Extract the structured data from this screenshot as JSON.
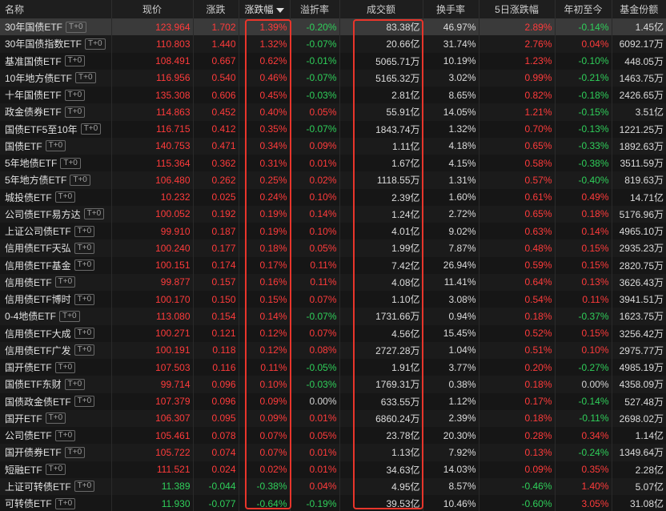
{
  "colors": {
    "up": "#ff3b3b",
    "down": "#2fcf5a",
    "highlight": "#e8352b"
  },
  "headers": [
    "名称",
    "现价",
    "涨跌",
    "涨跌幅",
    "溢折率",
    "成交额",
    "换手率",
    "5日涨跌幅",
    "年初至今",
    "基金份额"
  ],
  "sort_indicator": "sort-desc-icon",
  "rows": [
    {
      "name": "30年国债ETF",
      "tag": "T+0",
      "price": "123.964",
      "chg": "1.702",
      "pct": "1.39%",
      "prem": "-0.20%",
      "vol": "83.38亿",
      "turn": "46.97%",
      "d5": "2.89%",
      "ytd": "-0.14%",
      "shares": "1.45亿"
    },
    {
      "name": "30年国债指数ETF",
      "tag": "T+0",
      "price": "110.803",
      "chg": "1.440",
      "pct": "1.32%",
      "prem": "-0.07%",
      "vol": "20.66亿",
      "turn": "31.74%",
      "d5": "2.76%",
      "ytd": "0.04%",
      "shares": "6092.17万"
    },
    {
      "name": "基准国债ETF",
      "tag": "T+0",
      "price": "108.491",
      "chg": "0.667",
      "pct": "0.62%",
      "prem": "-0.01%",
      "vol": "5065.71万",
      "turn": "10.19%",
      "d5": "1.23%",
      "ytd": "-0.10%",
      "shares": "448.05万"
    },
    {
      "name": "10年地方债ETF",
      "tag": "T+0",
      "price": "116.956",
      "chg": "0.540",
      "pct": "0.46%",
      "prem": "-0.07%",
      "vol": "5165.32万",
      "turn": "3.02%",
      "d5": "0.99%",
      "ytd": "-0.21%",
      "shares": "1463.75万"
    },
    {
      "name": "十年国债ETF",
      "tag": "T+0",
      "price": "135.308",
      "chg": "0.606",
      "pct": "0.45%",
      "prem": "-0.03%",
      "vol": "2.81亿",
      "turn": "8.65%",
      "d5": "0.82%",
      "ytd": "-0.18%",
      "shares": "2426.65万"
    },
    {
      "name": "政金债券ETF",
      "tag": "T+0",
      "price": "114.863",
      "chg": "0.452",
      "pct": "0.40%",
      "prem": "0.05%",
      "vol": "55.91亿",
      "turn": "14.05%",
      "d5": "1.21%",
      "ytd": "-0.15%",
      "shares": "3.51亿"
    },
    {
      "name": "国债ETF5至10年",
      "tag": "T+0",
      "price": "116.715",
      "chg": "0.412",
      "pct": "0.35%",
      "prem": "-0.07%",
      "vol": "1843.74万",
      "turn": "1.32%",
      "d5": "0.70%",
      "ytd": "-0.13%",
      "shares": "1221.25万"
    },
    {
      "name": "国债ETF",
      "tag": "T+0",
      "price": "140.753",
      "chg": "0.471",
      "pct": "0.34%",
      "prem": "0.09%",
      "vol": "1.11亿",
      "turn": "4.18%",
      "d5": "0.65%",
      "ytd": "-0.33%",
      "shares": "1892.63万"
    },
    {
      "name": "5年地债ETF",
      "tag": "T+0",
      "price": "115.364",
      "chg": "0.362",
      "pct": "0.31%",
      "prem": "0.01%",
      "vol": "1.67亿",
      "turn": "4.15%",
      "d5": "0.58%",
      "ytd": "-0.38%",
      "shares": "3511.59万"
    },
    {
      "name": "5年地方债ETF",
      "tag": "T+0",
      "price": "106.480",
      "chg": "0.262",
      "pct": "0.25%",
      "prem": "0.02%",
      "vol": "1118.55万",
      "turn": "1.31%",
      "d5": "0.57%",
      "ytd": "-0.40%",
      "shares": "819.63万"
    },
    {
      "name": "城投债ETF",
      "tag": "T+0",
      "price": "10.232",
      "chg": "0.025",
      "pct": "0.24%",
      "prem": "0.10%",
      "vol": "2.39亿",
      "turn": "1.60%",
      "d5": "0.61%",
      "ytd": "0.49%",
      "shares": "14.71亿"
    },
    {
      "name": "公司债ETF易方达",
      "tag": "T+0",
      "price": "100.052",
      "chg": "0.192",
      "pct": "0.19%",
      "prem": "0.14%",
      "vol": "1.24亿",
      "turn": "2.72%",
      "d5": "0.65%",
      "ytd": "0.18%",
      "shares": "5176.96万"
    },
    {
      "name": "上证公司债ETF",
      "tag": "T+0",
      "price": "99.910",
      "chg": "0.187",
      "pct": "0.19%",
      "prem": "0.10%",
      "vol": "4.01亿",
      "turn": "9.02%",
      "d5": "0.63%",
      "ytd": "0.14%",
      "shares": "4965.10万"
    },
    {
      "name": "信用债ETF天弘",
      "tag": "T+0",
      "price": "100.240",
      "chg": "0.177",
      "pct": "0.18%",
      "prem": "0.05%",
      "vol": "1.99亿",
      "turn": "7.87%",
      "d5": "0.48%",
      "ytd": "0.15%",
      "shares": "2935.23万"
    },
    {
      "name": "信用债ETF基金",
      "tag": "T+0",
      "price": "100.151",
      "chg": "0.174",
      "pct": "0.17%",
      "prem": "0.11%",
      "vol": "7.42亿",
      "turn": "26.94%",
      "d5": "0.59%",
      "ytd": "0.15%",
      "shares": "2820.75万"
    },
    {
      "name": "信用债ETF",
      "tag": "T+0",
      "price": "99.877",
      "chg": "0.157",
      "pct": "0.16%",
      "prem": "0.11%",
      "vol": "4.08亿",
      "turn": "11.41%",
      "d5": "0.64%",
      "ytd": "0.13%",
      "shares": "3626.43万"
    },
    {
      "name": "信用债ETF博时",
      "tag": "T+0",
      "price": "100.170",
      "chg": "0.150",
      "pct": "0.15%",
      "prem": "0.07%",
      "vol": "1.10亿",
      "turn": "3.08%",
      "d5": "0.54%",
      "ytd": "0.11%",
      "shares": "3941.51万"
    },
    {
      "name": "0-4地债ETF",
      "tag": "T+0",
      "price": "113.080",
      "chg": "0.154",
      "pct": "0.14%",
      "prem": "-0.07%",
      "vol": "1731.66万",
      "turn": "0.94%",
      "d5": "0.18%",
      "ytd": "-0.37%",
      "shares": "1623.75万"
    },
    {
      "name": "信用债ETF大成",
      "tag": "T+0",
      "price": "100.271",
      "chg": "0.121",
      "pct": "0.12%",
      "prem": "0.07%",
      "vol": "4.56亿",
      "turn": "15.45%",
      "d5": "0.52%",
      "ytd": "0.15%",
      "shares": "3256.42万"
    },
    {
      "name": "信用债ETF广发",
      "tag": "T+0",
      "price": "100.191",
      "chg": "0.118",
      "pct": "0.12%",
      "prem": "0.08%",
      "vol": "2727.28万",
      "turn": "1.04%",
      "d5": "0.51%",
      "ytd": "0.10%",
      "shares": "2975.77万"
    },
    {
      "name": "国开债ETF",
      "tag": "T+0",
      "price": "107.503",
      "chg": "0.116",
      "pct": "0.11%",
      "prem": "-0.05%",
      "vol": "1.91亿",
      "turn": "3.77%",
      "d5": "0.20%",
      "ytd": "-0.27%",
      "shares": "4985.19万"
    },
    {
      "name": "国债ETF东财",
      "tag": "T+0",
      "price": "99.714",
      "chg": "0.096",
      "pct": "0.10%",
      "prem": "-0.03%",
      "vol": "1769.31万",
      "turn": "0.38%",
      "d5": "0.18%",
      "ytd": "0.00%",
      "shares": "4358.09万"
    },
    {
      "name": "国债政金债ETF",
      "tag": "T+0",
      "price": "107.379",
      "chg": "0.096",
      "pct": "0.09%",
      "prem": "0.00%",
      "vol": "633.55万",
      "turn": "1.12%",
      "d5": "0.17%",
      "ytd": "-0.14%",
      "shares": "527.48万"
    },
    {
      "name": "国开ETF",
      "tag": "T+0",
      "price": "106.307",
      "chg": "0.095",
      "pct": "0.09%",
      "prem": "0.01%",
      "vol": "6860.24万",
      "turn": "2.39%",
      "d5": "0.18%",
      "ytd": "-0.11%",
      "shares": "2698.02万"
    },
    {
      "name": "公司债ETF",
      "tag": "T+0",
      "price": "105.461",
      "chg": "0.078",
      "pct": "0.07%",
      "prem": "0.05%",
      "vol": "23.78亿",
      "turn": "20.30%",
      "d5": "0.28%",
      "ytd": "0.34%",
      "shares": "1.14亿"
    },
    {
      "name": "国开债券ETF",
      "tag": "T+0",
      "price": "105.722",
      "chg": "0.074",
      "pct": "0.07%",
      "prem": "0.01%",
      "vol": "1.13亿",
      "turn": "7.92%",
      "d5": "0.13%",
      "ytd": "-0.24%",
      "shares": "1349.64万"
    },
    {
      "name": "短融ETF",
      "tag": "T+0",
      "price": "111.521",
      "chg": "0.024",
      "pct": "0.02%",
      "prem": "0.01%",
      "vol": "34.63亿",
      "turn": "14.03%",
      "d5": "0.09%",
      "ytd": "0.35%",
      "shares": "2.28亿"
    },
    {
      "name": "上证可转债ETF",
      "tag": "T+0",
      "price": "11.389",
      "chg": "-0.044",
      "pct": "-0.38%",
      "prem": "0.04%",
      "vol": "4.95亿",
      "turn": "8.57%",
      "d5": "-0.46%",
      "ytd": "1.40%",
      "shares": "5.07亿"
    },
    {
      "name": "可转债ETF",
      "tag": "T+0",
      "price": "11.930",
      "chg": "-0.077",
      "pct": "-0.64%",
      "prem": "-0.19%",
      "vol": "39.53亿",
      "turn": "10.46%",
      "d5": "-0.60%",
      "ytd": "3.05%",
      "shares": "31.08亿"
    }
  ]
}
